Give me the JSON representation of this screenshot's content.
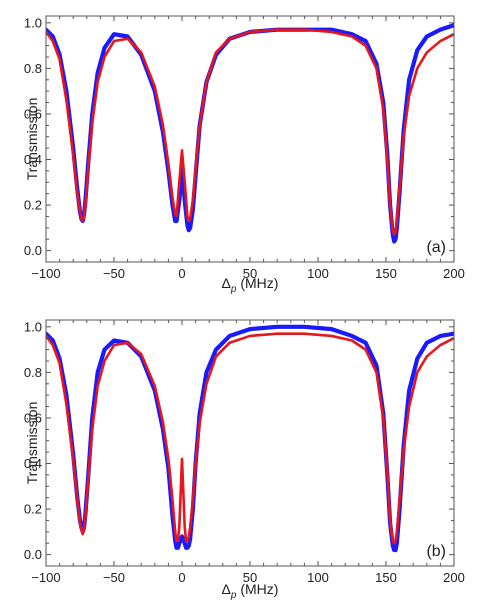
{
  "colors": {
    "measured": "#1a1aff",
    "fit": "#e8151b",
    "axis": "#555555"
  },
  "chart_data": [
    {
      "type": "line",
      "panel_label": "(a)",
      "xlabel_main": "Δ",
      "xlabel_sub": "p",
      "xlabel_unit": " (MHz)",
      "ylabel": "Transmission",
      "xlim": [
        -100,
        200
      ],
      "ylim": [
        -0.05,
        1.03
      ],
      "xticks": [
        -100,
        -50,
        0,
        50,
        100,
        150,
        200
      ],
      "xtick_labels": [
        "−100",
        "−50",
        "0",
        "50",
        "100",
        "150",
        "200"
      ],
      "yticks": [
        0.0,
        0.2,
        0.4,
        0.6,
        0.8,
        1.0
      ],
      "ytick_labels": [
        "0.0",
        "0.2",
        "0.4",
        "0.6",
        "0.8",
        "1.0"
      ],
      "series": [
        {
          "color": "#1a1aff",
          "x": [
            -100,
            -95,
            -90,
            -85,
            -80,
            -77,
            -75,
            -74,
            -73,
            -72,
            -71,
            -69,
            -66,
            -62,
            -57,
            -50,
            -40,
            -30,
            -20,
            -14,
            -10,
            -7,
            -5,
            -4,
            -2,
            0,
            2,
            4,
            5,
            6,
            8,
            10,
            13,
            18,
            25,
            35,
            50,
            70,
            90,
            110,
            125,
            135,
            143,
            148,
            151,
            153,
            155,
            156,
            157,
            158,
            160,
            163,
            167,
            173,
            180,
            190,
            200
          ],
          "y": [
            0.97,
            0.94,
            0.86,
            0.7,
            0.45,
            0.27,
            0.17,
            0.14,
            0.13,
            0.16,
            0.22,
            0.38,
            0.6,
            0.78,
            0.89,
            0.95,
            0.94,
            0.86,
            0.7,
            0.52,
            0.35,
            0.2,
            0.13,
            0.13,
            0.22,
            0.36,
            0.22,
            0.11,
            0.09,
            0.1,
            0.18,
            0.33,
            0.55,
            0.74,
            0.86,
            0.93,
            0.96,
            0.97,
            0.97,
            0.97,
            0.95,
            0.92,
            0.82,
            0.65,
            0.42,
            0.2,
            0.07,
            0.04,
            0.05,
            0.1,
            0.26,
            0.53,
            0.75,
            0.88,
            0.94,
            0.97,
            0.99
          ]
        },
        {
          "color": "#e8151b",
          "x": [
            -100,
            -95,
            -90,
            -85,
            -80,
            -77,
            -75,
            -74,
            -73,
            -72,
            -71,
            -69,
            -66,
            -62,
            -57,
            -50,
            -40,
            -30,
            -20,
            -14,
            -10,
            -7,
            -5,
            -4,
            -2,
            0,
            2,
            4,
            5,
            6,
            8,
            10,
            13,
            18,
            25,
            35,
            50,
            70,
            90,
            110,
            125,
            135,
            143,
            148,
            151,
            153,
            155,
            156,
            157,
            158,
            160,
            163,
            167,
            173,
            180,
            190,
            200
          ],
          "y": [
            0.96,
            0.92,
            0.84,
            0.66,
            0.42,
            0.25,
            0.17,
            0.14,
            0.13,
            0.15,
            0.2,
            0.36,
            0.56,
            0.74,
            0.85,
            0.92,
            0.93,
            0.87,
            0.72,
            0.55,
            0.38,
            0.23,
            0.16,
            0.15,
            0.3,
            0.44,
            0.3,
            0.15,
            0.13,
            0.14,
            0.22,
            0.36,
            0.55,
            0.74,
            0.87,
            0.93,
            0.96,
            0.97,
            0.97,
            0.96,
            0.94,
            0.9,
            0.8,
            0.62,
            0.4,
            0.2,
            0.09,
            0.07,
            0.08,
            0.13,
            0.28,
            0.5,
            0.68,
            0.8,
            0.87,
            0.92,
            0.95
          ]
        }
      ]
    },
    {
      "type": "line",
      "panel_label": "(b)",
      "xlabel_main": "Δ",
      "xlabel_sub": "p",
      "xlabel_unit": " (MHz)",
      "ylabel": "Transmission",
      "xlim": [
        -100,
        200
      ],
      "ylim": [
        -0.05,
        1.03
      ],
      "xticks": [
        -100,
        -50,
        0,
        50,
        100,
        150,
        200
      ],
      "xtick_labels": [
        "−100",
        "−50",
        "0",
        "50",
        "100",
        "150",
        "200"
      ],
      "yticks": [
        0.0,
        0.2,
        0.4,
        0.6,
        0.8,
        1.0
      ],
      "ytick_labels": [
        "0.0",
        "0.2",
        "0.4",
        "0.6",
        "0.8",
        "1.0"
      ],
      "series": [
        {
          "color": "#1a1aff",
          "x": [
            -100,
            -95,
            -90,
            -85,
            -80,
            -77,
            -75,
            -74,
            -73,
            -72,
            -71,
            -69,
            -66,
            -62,
            -57,
            -50,
            -40,
            -30,
            -20,
            -14,
            -10,
            -7,
            -5,
            -4,
            -3,
            -2,
            0,
            2,
            3,
            4,
            5,
            6,
            8,
            10,
            13,
            18,
            25,
            35,
            50,
            70,
            90,
            110,
            125,
            135,
            143,
            148,
            151,
            153,
            155,
            156,
            157,
            158,
            160,
            163,
            167,
            173,
            180,
            190,
            200
          ],
          "y": [
            0.97,
            0.94,
            0.86,
            0.7,
            0.44,
            0.25,
            0.15,
            0.12,
            0.1,
            0.12,
            0.18,
            0.34,
            0.6,
            0.8,
            0.9,
            0.94,
            0.93,
            0.87,
            0.72,
            0.55,
            0.38,
            0.17,
            0.06,
            0.03,
            0.03,
            0.05,
            0.08,
            0.05,
            0.03,
            0.03,
            0.04,
            0.07,
            0.2,
            0.4,
            0.62,
            0.8,
            0.9,
            0.96,
            0.99,
            1.0,
            1.0,
            0.99,
            0.96,
            0.93,
            0.83,
            0.62,
            0.35,
            0.14,
            0.04,
            0.02,
            0.02,
            0.05,
            0.2,
            0.48,
            0.72,
            0.86,
            0.93,
            0.96,
            0.97
          ]
        },
        {
          "color": "#e8151b",
          "x": [
            -100,
            -95,
            -90,
            -85,
            -80,
            -77,
            -75,
            -74,
            -73,
            -72,
            -71,
            -69,
            -66,
            -62,
            -57,
            -50,
            -40,
            -30,
            -20,
            -14,
            -10,
            -7,
            -5,
            -4,
            -3,
            -2,
            0,
            2,
            3,
            4,
            5,
            6,
            8,
            10,
            13,
            18,
            25,
            35,
            50,
            70,
            90,
            110,
            125,
            135,
            143,
            148,
            151,
            153,
            155,
            156,
            157,
            158,
            160,
            163,
            167,
            173,
            180,
            190,
            200
          ],
          "y": [
            0.96,
            0.92,
            0.84,
            0.66,
            0.42,
            0.24,
            0.14,
            0.11,
            0.09,
            0.11,
            0.17,
            0.33,
            0.55,
            0.74,
            0.85,
            0.92,
            0.93,
            0.88,
            0.74,
            0.58,
            0.42,
            0.24,
            0.1,
            0.06,
            0.06,
            0.12,
            0.42,
            0.12,
            0.06,
            0.06,
            0.08,
            0.12,
            0.24,
            0.4,
            0.58,
            0.75,
            0.87,
            0.93,
            0.96,
            0.97,
            0.97,
            0.96,
            0.94,
            0.9,
            0.8,
            0.6,
            0.36,
            0.15,
            0.06,
            0.05,
            0.06,
            0.1,
            0.24,
            0.46,
            0.65,
            0.8,
            0.87,
            0.92,
            0.95
          ]
        }
      ]
    }
  ]
}
